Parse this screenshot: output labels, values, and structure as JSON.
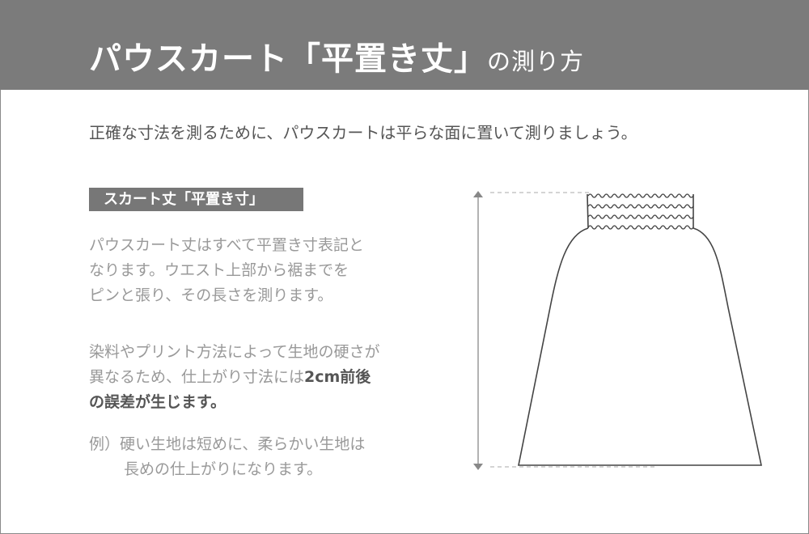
{
  "header": {
    "title_main": "パウスカート「平置き丈」",
    "title_suffix": "の測り方"
  },
  "intro": "正確な寸法を測るために、パウスカートは平らな面に置いて測りましょう。",
  "section_label": "スカート丈「平置き寸」",
  "paragraph1": [
    "パウスカート丈はすべて平置き寸表記と",
    "なります。ウエスト上部から裾までを",
    "ピンと張り、その長さを測ります。"
  ],
  "paragraph2": {
    "line1": "染料やプリント方法によって生地の硬さが",
    "line2_plain": "異なるため、仕上がり寸法には",
    "line2_bold": "2cm前後",
    "line3_bold": "の誤差が生じます。"
  },
  "example": {
    "line1": "例）硬い生地は短めに、柔らかい生地は",
    "line2": "長めの仕上がりになります。"
  },
  "colors": {
    "header_bg": "#7b7b7b",
    "label_bg": "#777777",
    "body_text": "#999999",
    "emphasis_text": "#555555"
  }
}
